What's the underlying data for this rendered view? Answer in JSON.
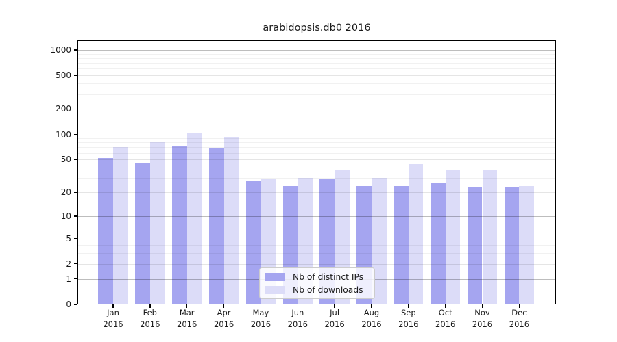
{
  "title": "arabidopsis.db0 2016",
  "colors": {
    "ips_bar": "#a5a5f0",
    "downloads_bar": "#dcdcf8",
    "spine": "#000000"
  },
  "legend": {
    "items": [
      {
        "label": "Nb of distinct IPs",
        "series": "ips"
      },
      {
        "label": "Nb of downloads",
        "series": "downloads"
      }
    ]
  },
  "y_axis": {
    "tick_labels": [
      "1000",
      "500",
      "200",
      "100",
      "50",
      "20",
      "10",
      "5",
      "2",
      "1",
      "0"
    ],
    "tick_values": [
      1000,
      500,
      200,
      100,
      50,
      20,
      10,
      5,
      2,
      1,
      0
    ],
    "decade_values": [
      1,
      10,
      100,
      1000
    ]
  },
  "chart_data": {
    "type": "bar",
    "title": "arabidopsis.db0 2016",
    "categories": [
      "Jan 2016",
      "Feb 2016",
      "Mar 2016",
      "Apr 2016",
      "May 2016",
      "Jun 2016",
      "Jul 2016",
      "Aug 2016",
      "Sep 2016",
      "Oct 2016",
      "Nov 2016",
      "Dec 2016"
    ],
    "series": [
      {
        "name": "Nb of distinct IPs",
        "values": [
          52,
          46,
          74,
          68,
          28,
          24,
          29,
          24,
          24,
          26,
          23,
          23
        ]
      },
      {
        "name": "Nb of downloads",
        "values": [
          70,
          81,
          105,
          94,
          29,
          30,
          37,
          30,
          44,
          37,
          38,
          24
        ]
      }
    ],
    "xlabel": "",
    "ylabel": "",
    "yscale": "log10(value+1)",
    "ylim": [
      0,
      1100
    ],
    "yticks": [
      0,
      1,
      2,
      5,
      10,
      20,
      50,
      100,
      200,
      500,
      1000
    ],
    "grid": true,
    "legend_position": "lower center"
  }
}
